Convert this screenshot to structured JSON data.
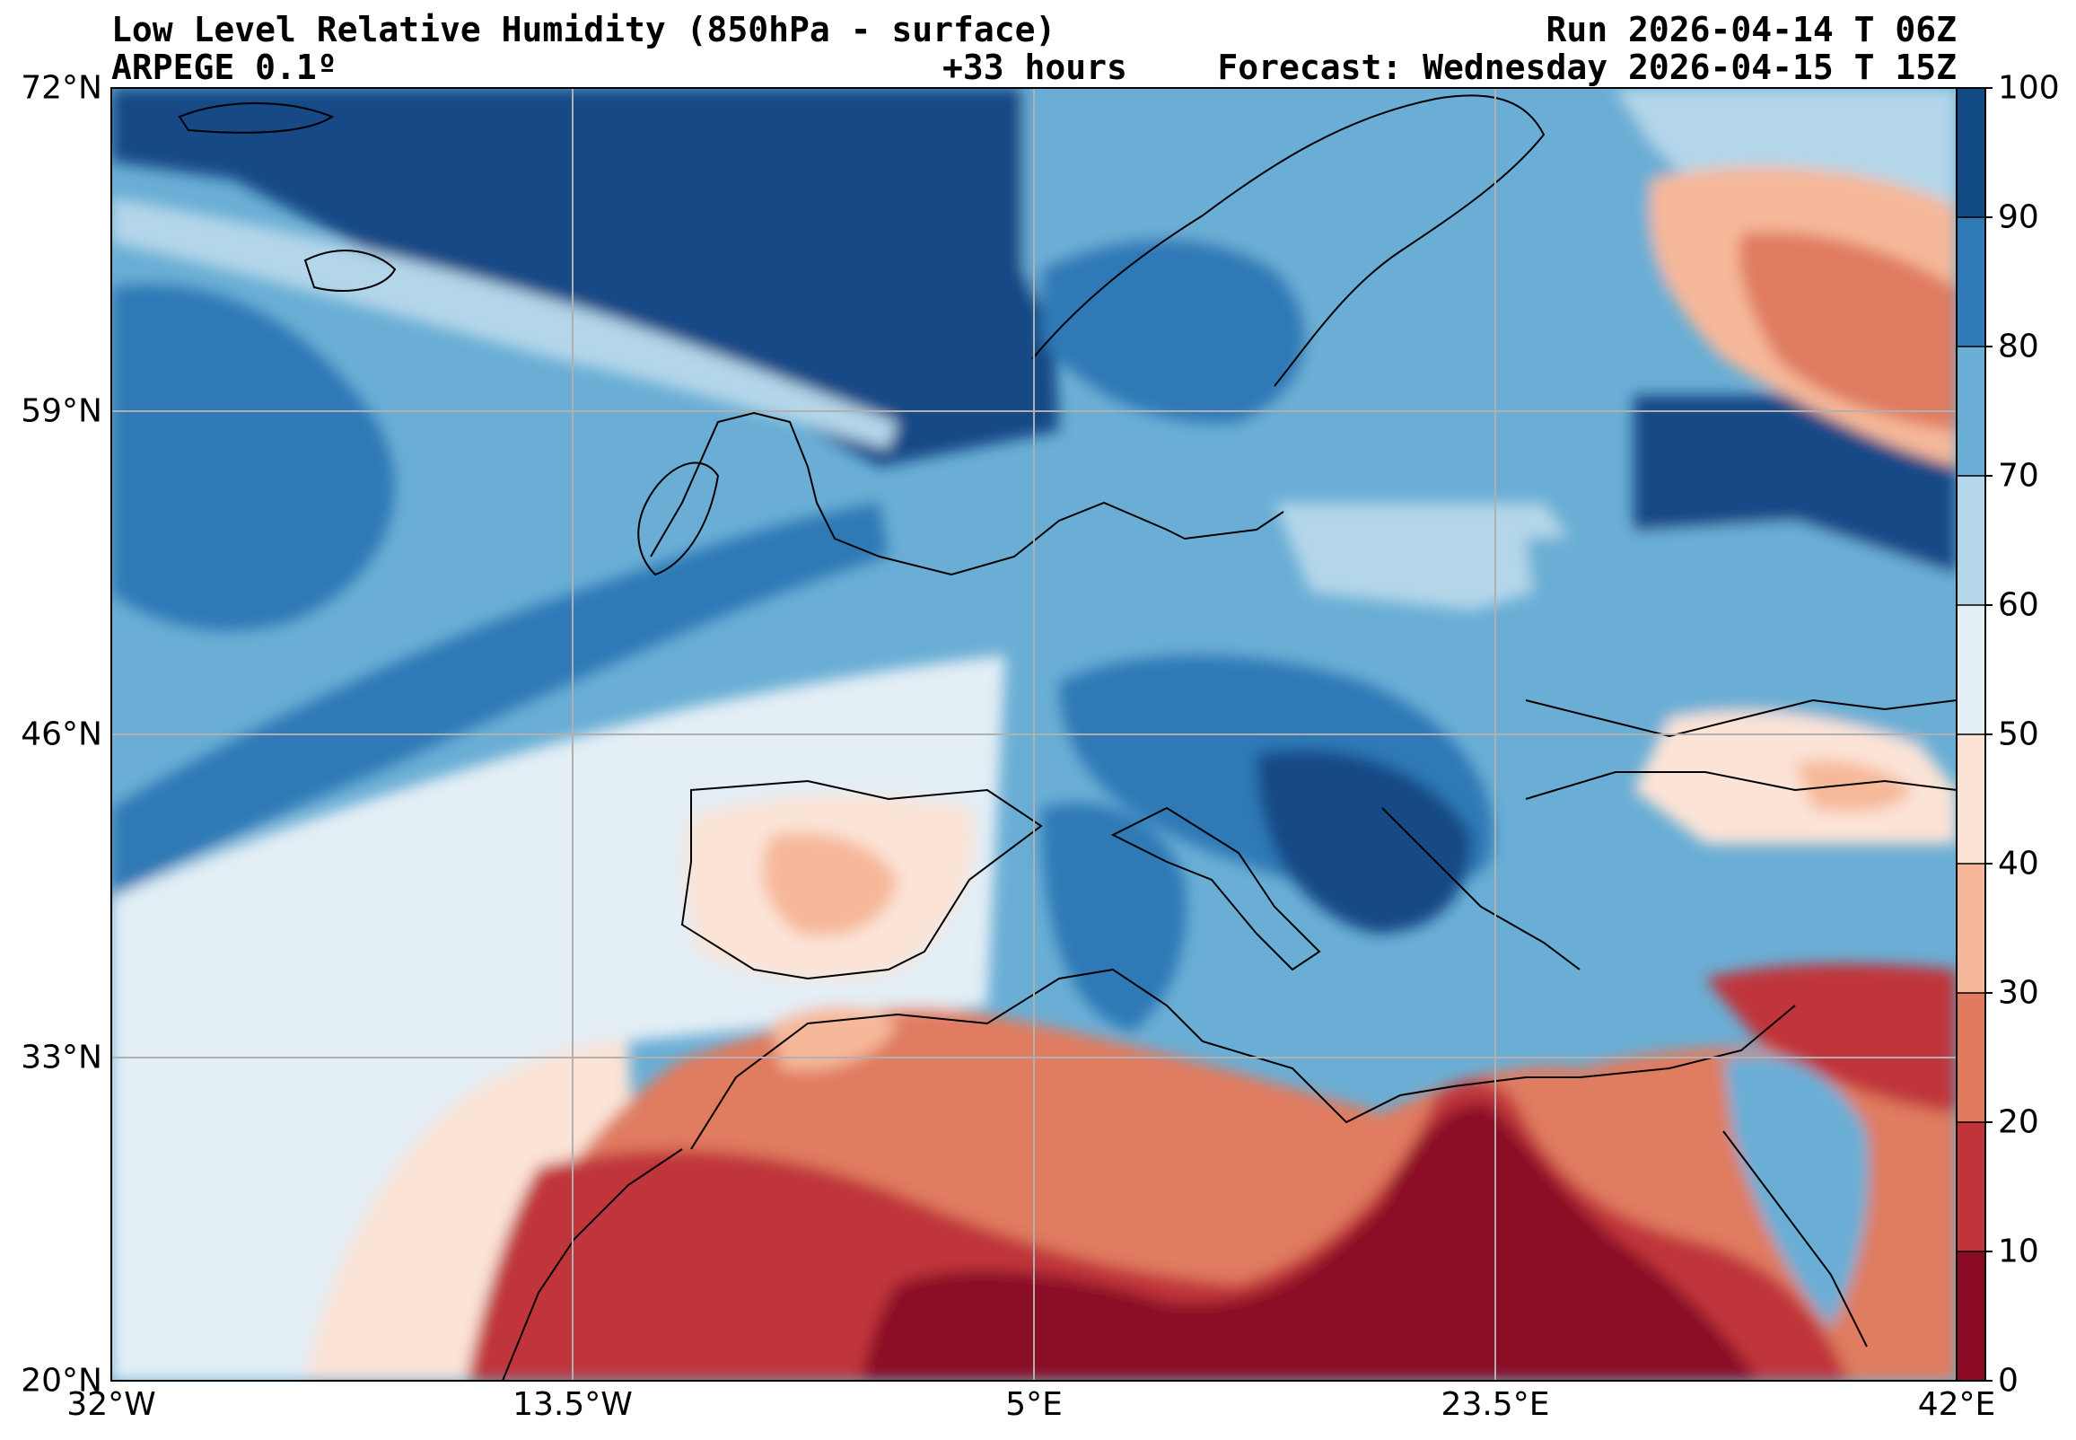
{
  "header": {
    "title": "Low Level Relative Humidity (850hPa - surface)",
    "model": "ARPEGE 0.1º",
    "run": "Run 2026-04-14 T 06Z",
    "lead": "+33 hours",
    "forecast": "Forecast: Wednesday 2026-04-15 T 15Z"
  },
  "map": {
    "projection": "equirectangular",
    "extent": {
      "lon_min": -32,
      "lon_max": 42,
      "lat_min": 20,
      "lat_max": 72
    },
    "lat_ticks": [
      {
        "value": 72,
        "label": "72°N"
      },
      {
        "value": 59,
        "label": "59°N"
      },
      {
        "value": 46,
        "label": "46°N"
      },
      {
        "value": 33,
        "label": "33°N"
      },
      {
        "value": 20,
        "label": "20°N"
      }
    ],
    "lon_ticks": [
      {
        "value": -32,
        "label": "32°W"
      },
      {
        "value": -13.5,
        "label": "13.5°W"
      },
      {
        "value": 5,
        "label": "5°E"
      },
      {
        "value": 23.5,
        "label": "23.5°E"
      },
      {
        "value": 42,
        "label": "42°E"
      }
    ],
    "gridlines": true
  },
  "colorbar": {
    "levels": [
      0,
      10,
      20,
      30,
      40,
      50,
      60,
      70,
      80,
      90,
      100
    ],
    "labels": [
      "0",
      "10",
      "20",
      "30",
      "40",
      "50",
      "60",
      "70",
      "80",
      "90",
      "100"
    ],
    "colors": [
      "#8b0a26",
      "#c0343a",
      "#e07b60",
      "#f6b89a",
      "#fbe3d6",
      "#e3eef5",
      "#b3d6e9",
      "#6aaed5",
      "#2f79b6",
      "#124a86"
    ]
  }
}
